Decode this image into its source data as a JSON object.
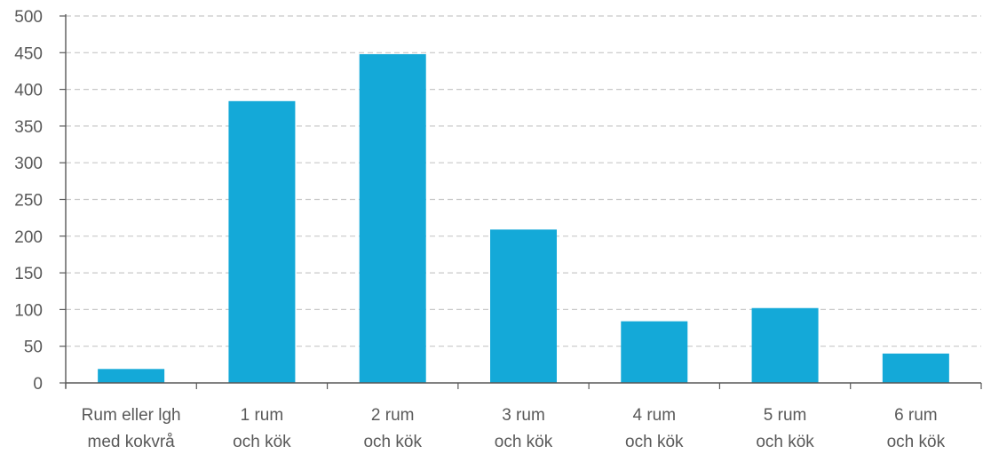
{
  "chart_data": {
    "type": "bar",
    "categories": [
      [
        "Rum eller lgh",
        "med kokvrå"
      ],
      [
        "1 rum",
        "och kök"
      ],
      [
        "2 rum",
        "och kök"
      ],
      [
        "3 rum",
        "och kök"
      ],
      [
        "4 rum",
        "och kök"
      ],
      [
        "5 rum",
        "och kök"
      ],
      [
        "6 rum",
        "och kök"
      ]
    ],
    "values": [
      19,
      384,
      448,
      209,
      84,
      102,
      40
    ],
    "yticks": [
      "0",
      "50",
      "100",
      "150",
      "200",
      "250",
      "300",
      "350",
      "400",
      "450",
      "500"
    ],
    "ylim": [
      0,
      500
    ],
    "grid": true,
    "legend": "none",
    "colors": {
      "bar": "#14A9D8",
      "grid": "#C8C8C8",
      "axis": "#595959",
      "text": "#595959"
    }
  }
}
